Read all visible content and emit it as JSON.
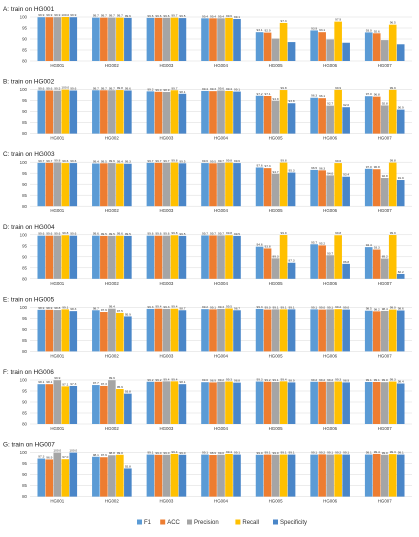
{
  "chart_data": {
    "type": "bar",
    "series_names": [
      "F1",
      "ACC",
      "Precision",
      "Recall",
      "Specificity"
    ],
    "colors": [
      "#5b9bd5",
      "#ed7d31",
      "#a5a5a5",
      "#ffc000",
      "#4a86c8"
    ],
    "categories": [
      "HG001",
      "HG002",
      "HG003",
      "HG004",
      "HG005",
      "HG006",
      "HG007"
    ],
    "ylim": [
      80,
      100
    ],
    "yticks": [
      80,
      85,
      90,
      95,
      100
    ],
    "panels": [
      {
        "title": "A: train on HG001",
        "values": [
          [
            99.9,
            99.9,
            99.9,
            100.0,
            99.9
          ],
          [
            99.7,
            99.7,
            99.7,
            99.7,
            99.6
          ],
          [
            99.6,
            99.6,
            99.6,
            99.7,
            99.5
          ],
          [
            99.4,
            99.4,
            99.4,
            99.6,
            99.1
          ],
          [
            93.1,
            92.9,
            90.2,
            97.3,
            88.6
          ],
          [
            93.9,
            93.1,
            89.8,
            97.9,
            88.3
          ],
          [
            93.0,
            92.6,
            89.5,
            96.5,
            87.6
          ]
        ],
        "labels": [
          [
            "99.9",
            "99.9",
            "99.9",
            "100.0",
            "99.9"
          ],
          [
            "99.7",
            "99.7",
            "99.7",
            "99.7",
            "99.6"
          ],
          [
            "99.6",
            "99.6",
            "99.6",
            "99.7",
            "99.5"
          ],
          [
            "99.4",
            "99.4",
            "99.4",
            "99.6",
            "99.1"
          ],
          [
            "93.1",
            "92.9",
            "",
            "97.3",
            ""
          ],
          [
            "93.9",
            "93.1",
            "",
            "97.9",
            ""
          ],
          [
            "93.0",
            "92.6",
            "",
            "96.5",
            ""
          ]
        ]
      },
      {
        "title": "B: train on HG002",
        "values": [
          [
            99.6,
            99.6,
            99.5,
            100.0,
            99.6
          ],
          [
            99.7,
            99.7,
            99.7,
            99.8,
            99.6
          ],
          [
            99.2,
            99.0,
            98.9,
            99.7,
            98.1
          ],
          [
            99.4,
            99.3,
            99.6,
            99.4,
            99.1
          ],
          [
            97.2,
            97.1,
            94.9,
            99.8,
            93.8
          ],
          [
            96.3,
            96.1,
            92.7,
            99.9,
            92.0
          ],
          [
            97.0,
            96.8,
            92.8,
            99.9,
            90.9
          ]
        ],
        "labels": [
          [
            "99.6",
            "99.6",
            "99.5",
            "100.0",
            "99.6"
          ],
          [
            "99.7",
            "99.7",
            "99.7",
            "99.8",
            "99.6"
          ],
          [
            "99.2",
            "99.0",
            "98.9",
            "99.7",
            "98.1"
          ],
          [
            "99.4",
            "99.3",
            "99.6",
            "99.4",
            "99.1"
          ],
          [
            "97.2",
            "97.1",
            "94.9",
            "99.8",
            "93.8"
          ],
          [
            "96.3",
            "96.1",
            "92.7",
            "99.9",
            "92.0"
          ],
          [
            "97.0",
            "96.8",
            "92.8",
            "99.9",
            "90.9"
          ]
        ]
      },
      {
        "title": "C: train on HG003",
        "values": [
          [
            99.7,
            99.7,
            99.8,
            99.6,
            99.6
          ],
          [
            99.4,
            99.5,
            99.6,
            99.4,
            99.3
          ],
          [
            99.7,
            99.7,
            99.7,
            99.8,
            99.5
          ],
          [
            99.6,
            99.5,
            99.7,
            99.8,
            99.6
          ],
          [
            97.6,
            97.3,
            94.7,
            99.8,
            95.3
          ],
          [
            96.5,
            96.3,
            94.0,
            99.6,
            93.4
          ],
          [
            97.0,
            96.8,
            92.8,
            99.8,
            91.9
          ]
        ],
        "labels": [
          [
            "99.7",
            "99.7",
            "99.8",
            "99.6",
            "99.6"
          ],
          [
            "99.4",
            "99.5",
            "99.6",
            "99.4",
            "99.3"
          ],
          [
            "99.7",
            "99.7",
            "99.7",
            "99.8",
            "99.5"
          ],
          [
            "99.6",
            "99.5",
            "99.7",
            "99.8",
            "99.6"
          ],
          [
            "97.6",
            "97.3",
            "94.7",
            "99.8",
            "95.3"
          ],
          [
            "96.5",
            "96.3",
            "94.0",
            "99.6",
            "93.4"
          ],
          [
            "97.0",
            "96.8",
            "92.8",
            "99.8",
            "91.9"
          ]
        ]
      },
      {
        "title": "D: train on HG004",
        "values": [
          [
            99.6,
            99.6,
            99.6,
            99.8,
            99.6
          ],
          [
            99.6,
            99.5,
            99.5,
            99.6,
            99.5
          ],
          [
            99.6,
            99.6,
            99.6,
            99.8,
            99.5
          ],
          [
            99.7,
            99.7,
            99.7,
            99.8,
            99.5
          ],
          [
            94.6,
            93.8,
            89.3,
            99.9,
            87.3
          ],
          [
            95.7,
            95.2,
            90.7,
            99.8,
            86.8
          ],
          [
            94.4,
            93.3,
            89.2,
            99.9,
            82.2
          ]
        ],
        "labels": [
          [
            "99.6",
            "99.6",
            "99.6",
            "99.8",
            "99.6"
          ],
          [
            "99.6",
            "99.5",
            "99.5",
            "99.6",
            "99.5"
          ],
          [
            "99.6",
            "99.6",
            "99.6",
            "99.8",
            "99.5"
          ],
          [
            "99.7",
            "99.7",
            "99.7",
            "99.8",
            "99.5"
          ],
          [
            "94.6",
            "93.8",
            "89.3",
            "99.9",
            "87.3"
          ],
          [
            "95.7",
            "95.2",
            "90.7",
            "99.8",
            "86.8"
          ],
          [
            "94.4",
            "93.3",
            "89.2",
            "99.9",
            "82.2"
          ]
        ]
      },
      {
        "title": "E: train on HG005",
        "values": [
          [
            98.9,
            98.9,
            98.8,
            99.1,
            98.3
          ],
          [
            98.7,
            97.9,
            99.4,
            97.5,
            95.9
          ],
          [
            99.3,
            99.4,
            99.3,
            99.4,
            98.7
          ],
          [
            99.2,
            99.1,
            99.3,
            99.5,
            98.7
          ],
          [
            99.3,
            99.0,
            99.1,
            99.1,
            99.1
          ],
          [
            99.1,
            99.0,
            99.1,
            99.2,
            99.0
          ],
          [
            98.5,
            98.2,
            98.4,
            99.0,
            98.6
          ]
        ],
        "labels": [
          [
            "98.9",
            "98.9",
            "98.8",
            "99.1",
            "98.3"
          ],
          [
            "98.7",
            "97.9",
            "99.4",
            "97.5",
            "95.9"
          ],
          [
            "99.3",
            "99.4",
            "99.3",
            "99.4",
            "98.7"
          ],
          [
            "99.2",
            "99.1",
            "99.3",
            "99.5",
            "98.7"
          ],
          [
            "99.3",
            "99.0",
            "99.1",
            "99.1",
            "99.1"
          ],
          [
            "99.1",
            "99.0",
            "99.1",
            "99.2",
            "99.0"
          ],
          [
            "98.5",
            "98.2",
            "98.4",
            "99.0",
            "98.6"
          ]
        ]
      },
      {
        "title": "F: train on HG006",
        "values": [
          [
            98.1,
            98.1,
            99.9,
            97.1,
            97.3
          ],
          [
            97.7,
            97.3,
            99.9,
            95.9,
            93.8
          ],
          [
            99.2,
            99.2,
            99.4,
            99.4,
            98.1
          ],
          [
            99.0,
            98.9,
            99.2,
            99.3,
            98.8
          ],
          [
            99.3,
            99.2,
            99.1,
            99.4,
            98.9
          ],
          [
            99.2,
            99.2,
            99.2,
            99.3,
            98.9
          ],
          [
            99.1,
            99.1,
            99.0,
            99.3,
            98.4
          ]
        ],
        "labels": [
          [
            "98.1",
            "98.1",
            "99.9",
            "97.1",
            "97.3"
          ],
          [
            "97.7",
            "97.3",
            "99.9",
            "95.9",
            "93.8"
          ],
          [
            "99.2",
            "99.2",
            "99.4",
            "99.4",
            "98.1"
          ],
          [
            "99.0",
            "98.9",
            "99.2",
            "99.3",
            "98.8"
          ],
          [
            "99.3",
            "99.2",
            "99.1",
            "99.4",
            "98.9"
          ],
          [
            "99.2",
            "99.2",
            "99.2",
            "99.3",
            "98.9"
          ],
          [
            "99.1",
            "99.1",
            "99.0",
            "99.3",
            "98.4"
          ]
        ]
      },
      {
        "title": "G: train on HG007",
        "values": [
          [
            97.3,
            96.9,
            100.0,
            97.0,
            100.0
          ],
          [
            98.1,
            97.9,
            98.8,
            99.0,
            92.8
          ],
          [
            99.1,
            99.0,
            99.0,
            99.4,
            99.0
          ],
          [
            99.1,
            98.9,
            99.0,
            99.4,
            99.1
          ],
          [
            99.0,
            99.1,
            99.0,
            99.1,
            99.1
          ],
          [
            99.1,
            99.2,
            99.1,
            99.2,
            99.1
          ],
          [
            99.1,
            99.4,
            99.0,
            99.3,
            99.1
          ]
        ],
        "labels": [
          [
            "97.3",
            "96.9",
            "100.0",
            "97.0",
            "100.0"
          ],
          [
            "98.1",
            "97.9",
            "98.8",
            "99.0",
            "92.8"
          ],
          [
            "99.1",
            "99.0",
            "99.0",
            "99.4",
            "99.0"
          ],
          [
            "99.1",
            "98.9",
            "99.0",
            "99.4",
            "99.1"
          ],
          [
            "99.0",
            "99.1",
            "99.0",
            "99.1",
            "99.1"
          ],
          [
            "99.1",
            "99.2",
            "99.1",
            "99.2",
            "99.1"
          ],
          [
            "99.1",
            "99.4",
            "99.0",
            "99.3",
            "99.1"
          ]
        ]
      }
    ]
  }
}
